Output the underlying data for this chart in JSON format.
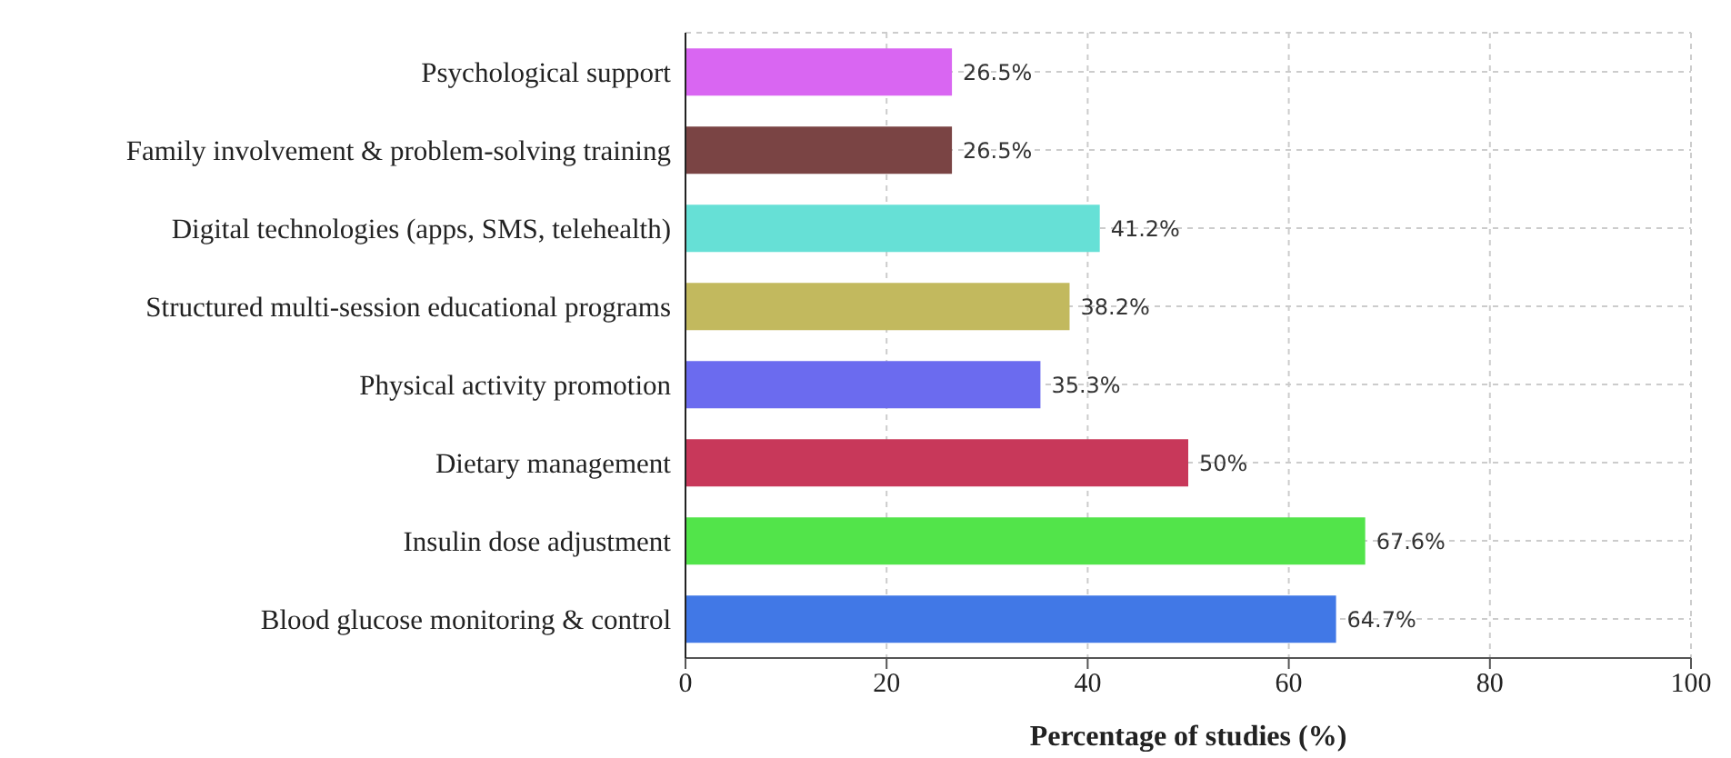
{
  "chart_data": {
    "type": "bar",
    "orientation": "horizontal",
    "xlabel": "Percentage of studies (%)",
    "categories": [
      "Psychological support",
      "Family involvement & problem-solving training",
      "Digital technologies (apps, SMS, telehealth)",
      "Structured multi-session educational programs",
      "Physical activity promotion",
      "Dietary management",
      "Insulin dose adjustment",
      "Blood glucose monitoring & control"
    ],
    "values": [
      26.5,
      26.5,
      41.2,
      38.2,
      35.3,
      50,
      67.6,
      64.7
    ],
    "colors": [
      "#d966f2",
      "#7a4444",
      "#66e0d6",
      "#c2b95e",
      "#6b6bef",
      "#c8385a",
      "#52e44a",
      "#4178e6"
    ],
    "value_labels": [
      "26.5%",
      "26.5%",
      "41.2%",
      "38.2%",
      "35.3%",
      "50%",
      "67.6%",
      "64.7%"
    ],
    "xlim": [
      0,
      100
    ],
    "xticks": [
      0,
      20,
      40,
      60,
      80,
      100
    ],
    "grid": true
  }
}
